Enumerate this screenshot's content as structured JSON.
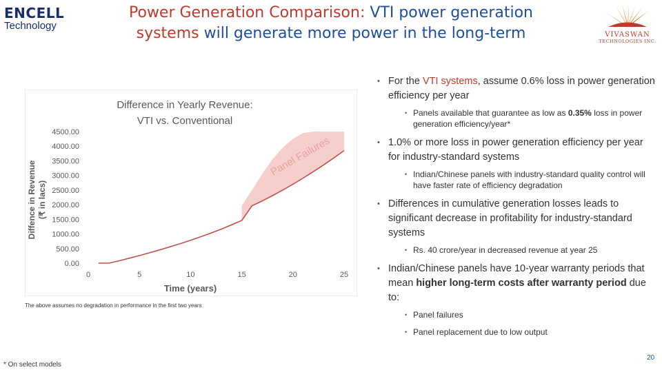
{
  "header": {
    "title_lead": "Power Generation Comparison:",
    "title_rest": "VTI power generation",
    "title_line2_hl": "systems",
    "title_line2_rest": "will generate more power in the long-term"
  },
  "logo_left": {
    "line1": "ENCELL",
    "line2": "Technology"
  },
  "logo_right": {
    "line1": "VIVASWAN",
    "line2": "TECHNOLOGIES INC."
  },
  "chart_data": {
    "type": "area",
    "title": "Difference in Yearly Revenue: VTI vs. Conventional",
    "title_line1": "Difference in Yearly Revenue:",
    "title_line2": "VTI vs. Conventional",
    "xlabel": "Time (years)",
    "ylabel_line1": "Diffence in Revenue",
    "ylabel_line2": "(₹ in lacs)",
    "xlim": [
      0,
      25
    ],
    "ylim": [
      0,
      4500
    ],
    "x_ticks": [
      "0",
      "5",
      "10",
      "15",
      "20",
      "25"
    ],
    "y_ticks": [
      "0.00",
      "500.00",
      "1000.00",
      "1500.00",
      "2000.00",
      "2500.00",
      "3000.00",
      "3500.00",
      "4000.00",
      "4500.00"
    ],
    "grid": false,
    "annotation": "Panel Failures",
    "series": [
      {
        "values_x": [
          1,
          2,
          3,
          4,
          5,
          6,
          7,
          8,
          9,
          10,
          11,
          12,
          13,
          14,
          15,
          16,
          17,
          18,
          19,
          20,
          21,
          22,
          23,
          24,
          25
        ],
        "values_y": [
          0,
          0,
          80,
          170,
          260,
          355,
          455,
          560,
          670,
          785,
          905,
          1030,
          1165,
          1310,
          1460,
          1960,
          2130,
          2310,
          2500,
          2700,
          2910,
          3130,
          3360,
          3600,
          3850
        ]
      }
    ],
    "band_upper": {
      "x": [
        15,
        16,
        17,
        18,
        19,
        20,
        21,
        22,
        23,
        24,
        25
      ],
      "y": [
        1960,
        2500,
        3050,
        3550,
        3950,
        4250,
        4450,
        4500,
        4500,
        4500,
        4500
      ]
    },
    "colors": {
      "line": "#c0504d",
      "band": "#f4c7c3",
      "annotation": "#e8a19c"
    }
  },
  "chart_note": "The above assumes no degradation in performance in the first two years",
  "bullets": [
    {
      "pre": "For the",
      "hl": "VTI systems",
      "post": ", assume 0.6% loss in power generation efficiency per year",
      "sub": [
        {
          "pre": "Panels available that guarantee as low as",
          "bold": "0.35%",
          "post": "loss in power generation efficiency/year*"
        }
      ]
    },
    {
      "text": "1.0% or more loss in power generation efficiency per year for industry-standard systems",
      "sub": [
        {
          "text": "Indian/Chinese panels with industry-standard quality control will have faster rate of efficiency degradation"
        }
      ]
    },
    {
      "text": "Differences in cumulative generation losses leads to significant decrease in profitability for industry-standard systems",
      "sub": [
        {
          "text": "Rs. 40 crore/year in decreased revenue at year 25"
        }
      ]
    },
    {
      "pre": "Indian/Chinese panels have 10-year warranty periods that mean",
      "bold": "higher long-term costs after warranty period",
      "post": "due to:",
      "sub": [
        {
          "text": "Panel failures"
        },
        {
          "text": "Panel replacement due to low output"
        }
      ]
    }
  ],
  "footnote": "* On select models",
  "page_number": "20"
}
